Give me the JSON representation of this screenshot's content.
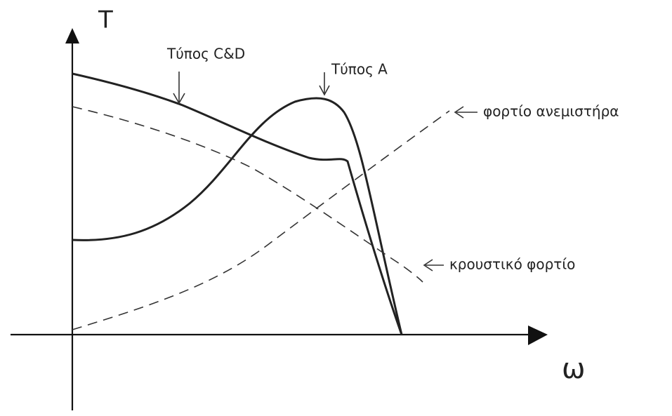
{
  "axes": {
    "y_label": "T",
    "x_label": "ω"
  },
  "labels": {
    "type_cd": "Τύπος C&D",
    "type_a": "Τύπος Α",
    "fan_load": "φορτίο ανεμιστήρα",
    "impact_load": "κρουστικό φορτίο"
  }
}
